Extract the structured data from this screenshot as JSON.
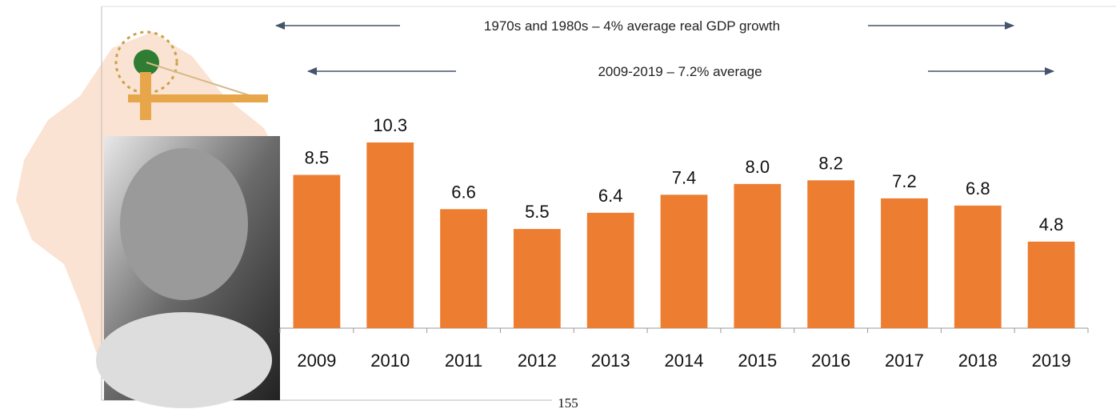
{
  "chart_data": {
    "type": "bar",
    "annotations": [
      "1970s and 1980s – 4% average real GDP growth",
      "2009-2019 – 7.2% average"
    ],
    "categories": [
      "2009",
      "2010",
      "2011",
      "2012",
      "2013",
      "2014",
      "2015",
      "2016",
      "2017",
      "2018",
      "2019"
    ],
    "values": [
      8.5,
      10.3,
      6.6,
      5.5,
      6.4,
      7.4,
      8.0,
      8.2,
      7.2,
      6.8,
      4.8
    ],
    "value_labels": [
      "8.5",
      "10.3",
      "6.6",
      "5.5",
      "6.4",
      "7.4",
      "8.0",
      "8.2",
      "7.2",
      "6.8",
      "4.8"
    ],
    "color": "#ed7d31"
  },
  "page_number": "155"
}
